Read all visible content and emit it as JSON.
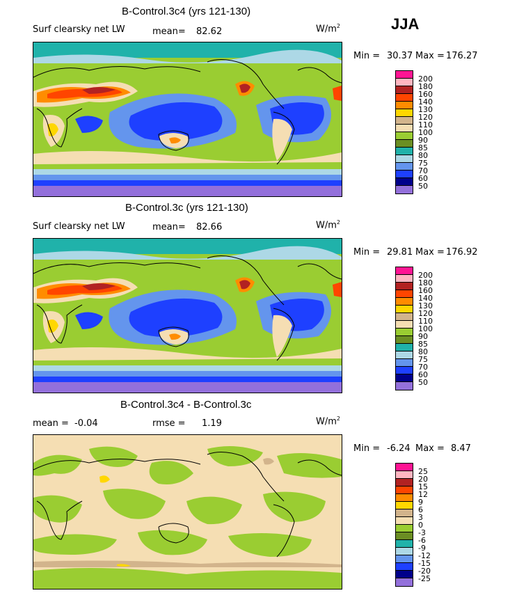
{
  "season": "JJA",
  "units_prefix": "W/m",
  "units_exp": "2",
  "panels": [
    {
      "title": "B-Control.3c4 (yrs 121-130)",
      "field": "Surf clearsky net LW",
      "mean_label": "mean=",
      "mean_value": "82.62",
      "min_label": "Min =",
      "min_value": "30.37",
      "max_label": "Max =",
      "max_value": "176.27",
      "levels": [
        "200",
        "180",
        "160",
        "140",
        "130",
        "120",
        "110",
        "100",
        "90",
        "85",
        "80",
        "75",
        "70",
        "60",
        "50"
      ],
      "colors": [
        "#ff1493",
        "#ffb6c1",
        "#b22222",
        "#ff4500",
        "#ff8c00",
        "#ffd700",
        "#d2b48c",
        "#f5deb3",
        "#9acd32",
        "#6b8e23",
        "#20b2aa",
        "#add8e6",
        "#6495ed",
        "#1e40ff",
        "#00008b",
        "#9370db"
      ]
    },
    {
      "title": "B-Control.3c (yrs 121-130)",
      "field": "Surf clearsky net LW",
      "mean_label": "mean=",
      "mean_value": "82.66",
      "min_label": "Min =",
      "min_value": "29.81",
      "max_label": "Max =",
      "max_value": "176.92",
      "levels": [
        "200",
        "180",
        "160",
        "140",
        "130",
        "120",
        "110",
        "100",
        "90",
        "85",
        "80",
        "75",
        "70",
        "60",
        "50"
      ],
      "colors": [
        "#ff1493",
        "#ffb6c1",
        "#b22222",
        "#ff4500",
        "#ff8c00",
        "#ffd700",
        "#d2b48c",
        "#f5deb3",
        "#9acd32",
        "#6b8e23",
        "#20b2aa",
        "#add8e6",
        "#6495ed",
        "#1e40ff",
        "#00008b",
        "#9370db"
      ]
    },
    {
      "title": "B-Control.3c4 - B-Control.3c",
      "mean_label": "mean =",
      "mean_value": "-0.04",
      "rmse_label": "rmse =",
      "rmse_value": "1.19",
      "min_label": "Min =",
      "min_value": "-6.24",
      "max_label": "Max =",
      "max_value": "8.47",
      "levels": [
        "25",
        "20",
        "15",
        "12",
        "9",
        "6",
        "3",
        "0",
        "-3",
        "-6",
        "-9",
        "-12",
        "-15",
        "-20",
        "-25"
      ],
      "colors": [
        "#ff1493",
        "#ffb6c1",
        "#b22222",
        "#ff4500",
        "#ff8c00",
        "#ffd700",
        "#d2b48c",
        "#f5deb3",
        "#9acd32",
        "#6b8e23",
        "#20b2aa",
        "#add8e6",
        "#6495ed",
        "#1e40ff",
        "#00008b",
        "#9370db"
      ]
    }
  ]
}
